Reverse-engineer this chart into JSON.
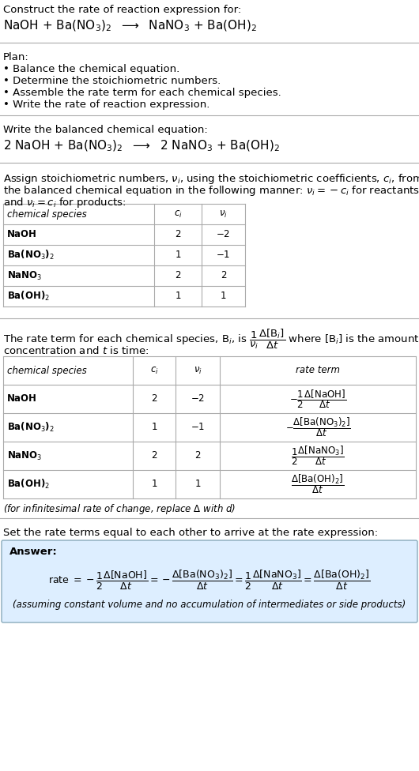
{
  "bg_color": "#ffffff",
  "text_color": "#000000",
  "answer_bg": "#ddeeff",
  "line_color": "#aaaaaa",
  "title_line1": "Construct the rate of reaction expression for:",
  "title_line2": "NaOH + Ba(NO$_3$)$_2$  $\\longrightarrow$  NaNO$_3$ + Ba(OH)$_2$",
  "plan_header": "Plan:",
  "plan_items": [
    "• Balance the chemical equation.",
    "• Determine the stoichiometric numbers.",
    "• Assemble the rate term for each chemical species.",
    "• Write the rate of reaction expression."
  ],
  "balanced_header": "Write the balanced chemical equation:",
  "balanced_eq": "2 NaOH + Ba(NO$_3$)$_2$  $\\longrightarrow$  2 NaNO$_3$ + Ba(OH)$_2$",
  "stoich_intro1": "Assign stoichiometric numbers, $\\nu_i$, using the stoichiometric coefficients, $c_i$, from",
  "stoich_intro2": "the balanced chemical equation in the following manner: $\\nu_i = -c_i$ for reactants",
  "stoich_intro3": "and $\\nu_i = c_i$ for products:",
  "table1_headers": [
    "chemical species",
    "$c_i$",
    "$\\nu_i$"
  ],
  "table1_rows": [
    [
      "NaOH",
      "2",
      "$-2$"
    ],
    [
      "Ba(NO$_3$)$_2$",
      "1",
      "$-1$"
    ],
    [
      "NaNO$_3$",
      "2",
      "2"
    ],
    [
      "Ba(OH)$_2$",
      "1",
      "1"
    ]
  ],
  "rate_intro1": "The rate term for each chemical species, B$_i$, is $\\dfrac{1}{\\nu_i}\\dfrac{\\Delta[\\mathrm{B}_i]}{\\Delta t}$ where [B$_i$] is the amount",
  "rate_intro2": "concentration and $t$ is time:",
  "table2_headers": [
    "chemical species",
    "$c_i$",
    "$\\nu_i$",
    "rate term"
  ],
  "table2_rows_species": [
    "NaOH",
    "Ba(NO$_3$)$_2$",
    "NaNO$_3$",
    "Ba(OH)$_2$"
  ],
  "table2_rows_ci": [
    "2",
    "1",
    "2",
    "1"
  ],
  "table2_rows_nu": [
    "$-2$",
    "$-1$",
    "2",
    "1"
  ],
  "table2_rate_terms": [
    "$-\\dfrac{1}{2}\\dfrac{\\Delta[\\mathrm{NaOH}]}{\\Delta t}$",
    "$-\\dfrac{\\Delta[\\mathrm{Ba(NO_3)_2}]}{\\Delta t}$",
    "$\\dfrac{1}{2}\\dfrac{\\Delta[\\mathrm{NaNO_3}]}{\\Delta t}$",
    "$\\dfrac{\\Delta[\\mathrm{Ba(OH)_2}]}{\\Delta t}$"
  ],
  "delta_note": "(for infinitesimal rate of change, replace $\\Delta$ with $d$)",
  "set_equal_text": "Set the rate terms equal to each other to arrive at the rate expression:",
  "answer_label": "Answer:",
  "rate_expr_parts": [
    "rate $= -\\dfrac{1}{2}\\dfrac{\\Delta[\\mathrm{NaOH}]}{\\Delta t} = -\\dfrac{\\Delta[\\mathrm{Ba(NO_3)_2}]}{\\Delta t} = \\dfrac{1}{2}\\dfrac{\\Delta[\\mathrm{NaNO_3}]}{\\Delta t} = \\dfrac{\\Delta[\\mathrm{Ba(OH)_2}]}{\\Delta t}$"
  ],
  "assumption": "(assuming constant volume and no accumulation of intermediates or side products)"
}
